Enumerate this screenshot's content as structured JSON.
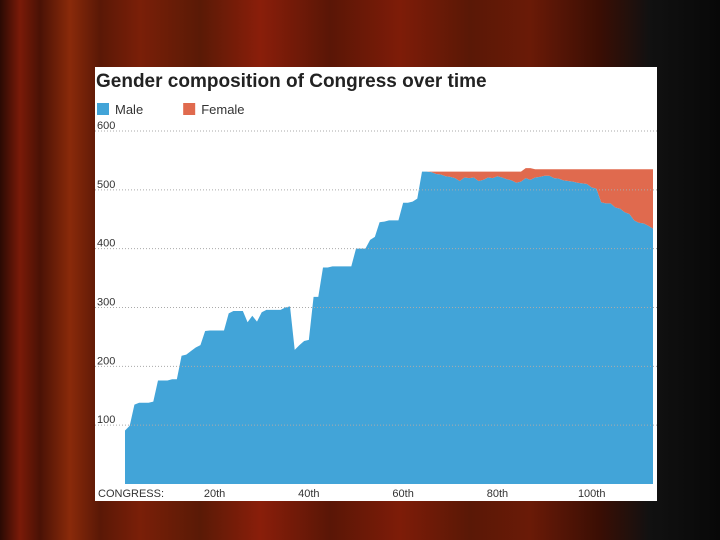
{
  "chart_data": {
    "type": "stacked_area",
    "title": "Gender composition of Congress over time",
    "x_label": "CONGRESS:",
    "x": [
      1,
      2,
      3,
      4,
      5,
      6,
      7,
      8,
      9,
      10,
      11,
      12,
      13,
      14,
      15,
      16,
      17,
      18,
      19,
      20,
      21,
      22,
      23,
      24,
      25,
      26,
      27,
      28,
      29,
      30,
      31,
      32,
      33,
      34,
      35,
      36,
      37,
      38,
      39,
      40,
      41,
      42,
      43,
      44,
      45,
      46,
      47,
      48,
      49,
      50,
      51,
      52,
      53,
      54,
      55,
      56,
      57,
      58,
      59,
      60,
      61,
      62,
      63,
      64,
      65,
      66,
      67,
      68,
      69,
      70,
      71,
      72,
      73,
      74,
      75,
      76,
      77,
      78,
      79,
      80,
      81,
      82,
      83,
      84,
      85,
      86,
      87,
      88,
      89,
      90,
      91,
      92,
      93,
      94,
      95,
      96,
      97,
      98,
      99,
      100,
      101,
      102,
      103,
      104,
      105,
      106,
      107,
      108,
      109,
      110,
      111,
      112,
      113
    ],
    "series": [
      {
        "name": "Male",
        "color": "#42a4d8",
        "values": [
          91,
          99,
          135,
          138,
          138,
          138,
          140,
          176,
          176,
          176,
          178,
          178,
          218,
          220,
          226,
          232,
          236,
          260,
          261,
          261,
          261,
          261,
          290,
          294,
          294,
          294,
          275,
          286,
          276,
          292,
          296,
          296,
          296,
          296,
          300,
          302,
          228,
          236,
          243,
          245,
          318,
          318,
          368,
          368,
          370,
          370,
          370,
          370,
          370,
          400,
          400,
          400,
          415,
          420,
          445,
          446,
          448,
          448,
          448,
          478,
          478,
          480,
          485,
          531,
          531,
          530,
          527,
          526,
          523,
          522,
          520,
          515,
          521,
          520,
          521,
          515,
          517,
          521,
          520,
          523,
          521,
          518,
          516,
          512,
          514,
          520,
          517,
          521,
          522,
          524,
          524,
          520,
          519,
          516,
          515,
          514,
          512,
          511,
          510,
          504,
          502,
          479,
          477,
          477,
          470,
          468,
          462,
          459,
          448,
          444,
          443,
          439,
          434
        ]
      },
      {
        "name": "Female",
        "color": "#e06a4e",
        "values": [
          0,
          0,
          0,
          0,
          0,
          0,
          0,
          0,
          0,
          0,
          0,
          0,
          0,
          0,
          0,
          0,
          0,
          0,
          0,
          0,
          0,
          0,
          0,
          0,
          0,
          0,
          0,
          0,
          0,
          0,
          0,
          0,
          0,
          0,
          0,
          0,
          0,
          0,
          0,
          0,
          0,
          0,
          0,
          0,
          0,
          0,
          0,
          0,
          0,
          0,
          0,
          0,
          0,
          0,
          0,
          0,
          0,
          0,
          0,
          0,
          0,
          0,
          0,
          0,
          0,
          1,
          4,
          5,
          8,
          9,
          11,
          16,
          10,
          11,
          10,
          16,
          14,
          10,
          11,
          8,
          10,
          13,
          15,
          19,
          17,
          17,
          20,
          14,
          13,
          11,
          11,
          15,
          16,
          19,
          20,
          21,
          23,
          24,
          25,
          31,
          33,
          56,
          58,
          58,
          65,
          67,
          73,
          76,
          87,
          91,
          92,
          96,
          101
        ]
      }
    ],
    "xlim": [
      1,
      113
    ],
    "xticks": [
      {
        "value": 20,
        "label": "20th"
      },
      {
        "value": 40,
        "label": "40th"
      },
      {
        "value": 60,
        "label": "60th"
      },
      {
        "value": 80,
        "label": "80th"
      },
      {
        "value": 100,
        "label": "100th"
      }
    ],
    "ylim": [
      0,
      600
    ],
    "yticks": [
      100,
      200,
      300,
      400,
      500,
      600
    ],
    "grid": true,
    "legend": "top-left"
  }
}
